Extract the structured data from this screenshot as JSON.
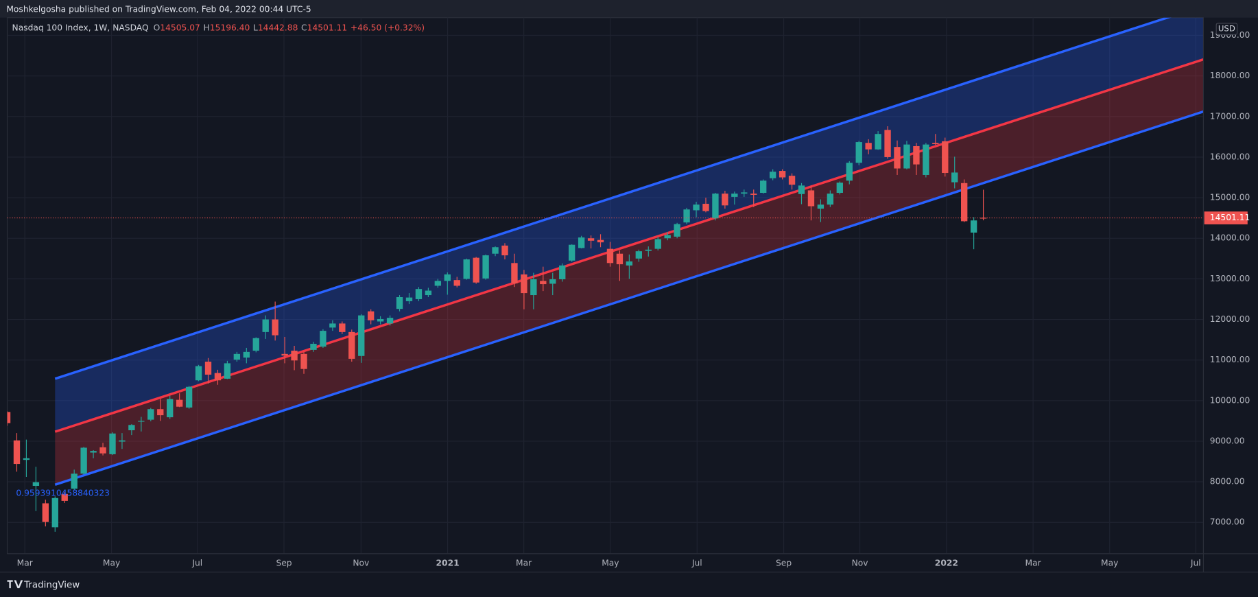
{
  "header": {
    "publisher": "Moshkelgosha published on TradingView.com, Feb 04, 2022 00:44 UTC-5",
    "brand": "TradingView"
  },
  "chart_data": {
    "type": "candlestick",
    "title": "Nasdaq 100 Index, 1W, NASDAQ",
    "ohlc_legend": [
      {
        "key": "O",
        "label": "14505.07"
      },
      {
        "key": "H",
        "label": "15196.40"
      },
      {
        "key": "L",
        "label": "14442.88"
      },
      {
        "key": "C",
        "label": "14501.11"
      }
    ],
    "change_label": "+46.50 (+0.32%)",
    "currency": "USD",
    "annotation": "0.9593910458840323",
    "up_color": "#26a69a",
    "down_color": "#ef5350",
    "x": [
      0,
      1,
      2,
      3,
      4,
      5,
      6,
      7,
      8,
      9,
      10,
      11,
      12,
      13,
      14,
      15,
      16,
      17,
      18,
      19,
      20,
      21,
      22,
      23,
      24,
      25,
      26,
      27,
      28,
      29,
      30,
      31,
      32,
      33,
      34,
      35,
      36,
      37,
      38,
      39,
      40,
      41,
      42,
      43,
      44,
      45,
      46,
      47,
      48,
      49,
      50,
      51,
      52,
      53,
      54,
      55,
      56,
      57,
      58,
      59,
      60,
      61,
      62,
      63,
      64,
      65,
      66,
      67,
      68,
      69,
      70,
      71,
      72,
      73,
      74,
      75,
      76,
      77,
      78,
      79,
      80,
      81,
      82,
      83,
      84,
      85,
      86,
      87,
      88,
      89,
      90,
      91,
      92,
      93,
      94,
      95,
      96,
      97,
      98,
      99,
      100,
      101,
      102
    ],
    "open": [
      9720,
      9020,
      8540,
      7900,
      7470,
      6880,
      7700,
      7830,
      8200,
      8720,
      8850,
      8680,
      8990,
      9270,
      9480,
      9530,
      9790,
      9590,
      10020,
      9830,
      10500,
      10960,
      10680,
      10540,
      11010,
      11060,
      11230,
      11690,
      12000,
      11150,
      11230,
      11150,
      11250,
      11330,
      11800,
      11900,
      11690,
      11100,
      12200,
      11950,
      11900,
      12260,
      12450,
      12500,
      12600,
      12830,
      12950,
      12970,
      13000,
      13520,
      13010,
      13620,
      13820,
      13390,
      13110,
      12600,
      12950,
      12880,
      12990,
      13450,
      13760,
      14000,
      13960,
      13740,
      13620,
      13330,
      13500,
      13690,
      13740,
      14000,
      14040,
      14390,
      14690,
      14850,
      14490,
      15100,
      15020,
      15100,
      15100,
      15120,
      15480,
      15660,
      15540,
      15090,
      15180,
      14730,
      14830,
      15120,
      15420,
      15860,
      16350,
      16190,
      16670,
      16250,
      15720,
      16270,
      15560,
      16350,
      16390,
      15380,
      15360,
      14140,
      14505.07
    ],
    "high": [
      9736,
      9200,
      9040,
      8370,
      7560,
      7640,
      7750,
      8300,
      8860,
      8780,
      8960,
      9220,
      9200,
      9420,
      9600,
      9820,
      10040,
      10120,
      10180,
      10360,
      10880,
      11050,
      10760,
      10980,
      11200,
      11300,
      11560,
      12100,
      12440,
      11570,
      11350,
      11200,
      11450,
      11760,
      11980,
      11950,
      11750,
      12130,
      12250,
      12080,
      12100,
      12600,
      12650,
      12800,
      12780,
      13000,
      13160,
      13050,
      13500,
      13540,
      13600,
      13800,
      13880,
      13620,
      13220,
      13150,
      13300,
      13150,
      13380,
      13850,
      14060,
      14070,
      14100,
      13910,
      13700,
      13600,
      13720,
      13800,
      14040,
      14150,
      14380,
      14750,
      14900,
      15000,
      15120,
      15170,
      15150,
      15200,
      15200,
      15450,
      15700,
      15700,
      15600,
      15360,
      15300,
      14960,
      15180,
      15400,
      15900,
      16400,
      16440,
      16640,
      16760,
      16410,
      16400,
      16350,
      16350,
      16570,
      16480,
      16010,
      15450,
      14520,
      15196.4
    ],
    "low": [
      9380,
      8250,
      8120,
      7280,
      6900,
      6770,
      7480,
      7790,
      8180,
      8580,
      8650,
      8660,
      8810,
      9150,
      9240,
      9490,
      9500,
      9550,
      9840,
      9800,
      10480,
      10420,
      10390,
      10530,
      10960,
      10920,
      11190,
      11520,
      11480,
      10920,
      10750,
      10660,
      11200,
      11300,
      11720,
      11640,
      10960,
      10930,
      11880,
      11880,
      11850,
      12200,
      12380,
      12450,
      12550,
      12780,
      12610,
      12790,
      12980,
      12880,
      12980,
      13560,
      13480,
      12800,
      12250,
      12250,
      12700,
      12600,
      12930,
      13420,
      13750,
      13750,
      13780,
      13300,
      12950,
      13000,
      13420,
      13550,
      13700,
      13950,
      14000,
      14350,
      14520,
      14640,
      14440,
      14730,
      14830,
      15020,
      14770,
      15100,
      15430,
      15450,
      15200,
      14840,
      14440,
      14400,
      14770,
      15080,
      15330,
      15800,
      16070,
      16180,
      15960,
      15560,
      15700,
      15560,
      15500,
      16300,
      15520,
      15230,
      14400,
      13730,
      14442.88
    ],
    "close": [
      9446,
      8440,
      8580,
      7990,
      7010,
      7600,
      7530,
      8200,
      8840,
      8760,
      8700,
      9190,
      9020,
      9400,
      9500,
      9790,
      9640,
      10040,
      9850,
      10340,
      10850,
      10640,
      10500,
      10920,
      11150,
      11200,
      11540,
      12000,
      11610,
      11110,
      10990,
      10780,
      11400,
      11720,
      11900,
      11690,
      11030,
      12100,
      11980,
      12010,
      12040,
      12550,
      12540,
      12750,
      12710,
      12950,
      13110,
      12830,
      13480,
      12910,
      13580,
      13780,
      13580,
      12890,
      12650,
      12990,
      12870,
      12990,
      13330,
      13840,
      14020,
      13940,
      13900,
      13390,
      13360,
      13430,
      13680,
      13720,
      13980,
      14080,
      14350,
      14710,
      14830,
      14670,
      15100,
      14810,
      15100,
      15130,
      15070,
      15420,
      15640,
      15500,
      15320,
      15300,
      14790,
      14830,
      15100,
      15370,
      15860,
      16370,
      16190,
      16570,
      16000,
      15720,
      16310,
      15820,
      16310,
      16320,
      15610,
      15620,
      14420,
      14440,
      14501.11
    ],
    "channel": {
      "x": [
        5,
        125
      ],
      "upper": [
        10539,
        19725
      ],
      "middle": [
        9234,
        18408
      ],
      "lower": [
        7929,
        17122
      ],
      "edge_color": "#2962ff",
      "mid_color": "#f23645"
    },
    "xlim": [
      0,
      125
    ],
    "xticks": [
      {
        "value": 1.84,
        "label": "Mar"
      },
      {
        "value": 10.9,
        "label": "May"
      },
      {
        "value": 19.87,
        "label": "Jul"
      },
      {
        "value": 28.92,
        "label": "Sep"
      },
      {
        "value": 36.97,
        "label": "Nov"
      },
      {
        "value": 46.02,
        "label": "2021"
      },
      {
        "value": 53.98,
        "label": "Mar"
      },
      {
        "value": 63.03,
        "label": "May"
      },
      {
        "value": 72.09,
        "label": "Jul"
      },
      {
        "value": 81.14,
        "label": "Sep"
      },
      {
        "value": 89.1,
        "label": "Nov"
      },
      {
        "value": 98.15,
        "label": "2022"
      },
      {
        "value": 107.2,
        "label": "Mar"
      },
      {
        "value": 115.2,
        "label": "May"
      },
      {
        "value": 124.2,
        "label": "Jul"
      }
    ],
    "ylim": [
      6229,
      19436
    ],
    "yticks": [
      {
        "value": 7000,
        "label": "7000.00"
      },
      {
        "value": 8000,
        "label": "8000.00"
      },
      {
        "value": 9000,
        "label": "9000.00"
      },
      {
        "value": 10000,
        "label": "10000.00"
      },
      {
        "value": 11000,
        "label": "11000.00"
      },
      {
        "value": 12000,
        "label": "12000.00"
      },
      {
        "value": 13000,
        "label": "13000.00"
      },
      {
        "value": 14000,
        "label": "14000.00"
      },
      {
        "value": 15000,
        "label": "15000.00"
      },
      {
        "value": 16000,
        "label": "16000.00"
      },
      {
        "value": 17000,
        "label": "17000.00"
      },
      {
        "value": 18000,
        "label": "18000.00"
      },
      {
        "value": 19000,
        "label": "19000.00"
      }
    ],
    "grid": true
  }
}
